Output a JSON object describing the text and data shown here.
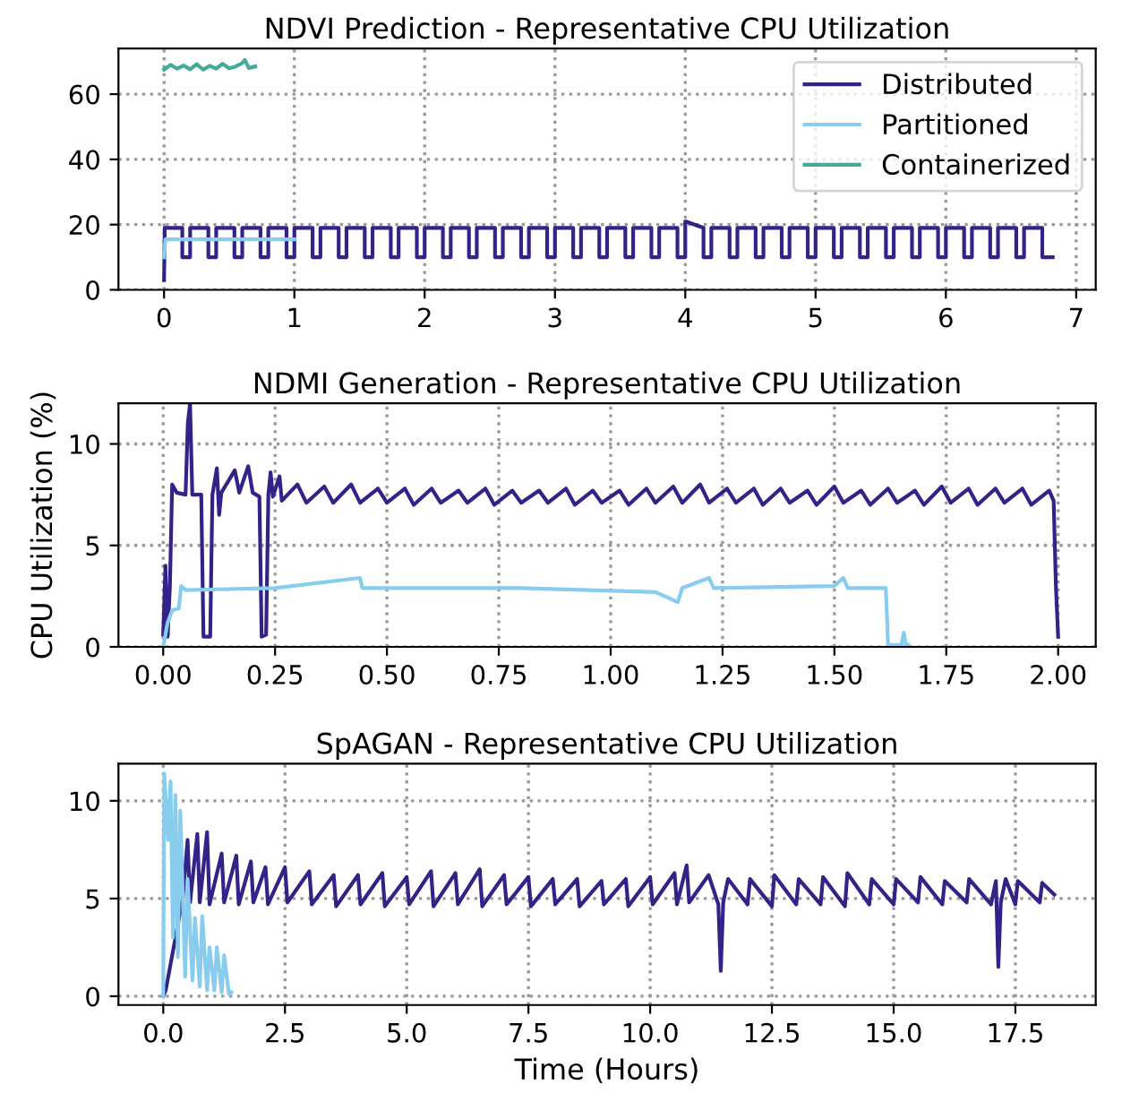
{
  "chart_data": [
    {
      "type": "line",
      "title": "NDVI Prediction - Representative CPU Utilization",
      "xlim": [
        -0.35,
        7.15
      ],
      "ylim": [
        0,
        74
      ],
      "xticks": [
        0,
        1,
        2,
        3,
        4,
        5,
        6,
        7
      ],
      "yticks": [
        0,
        20,
        40,
        60
      ],
      "grid": true,
      "legend": "top right",
      "line_style": "solid",
      "marker": "none",
      "series": [
        {
          "name": "Distributed",
          "color": "#332288",
          "x": [
            0,
            0.005,
            0.14,
            0.14,
            0.2,
            0.2,
            0.34,
            0.34,
            0.4,
            0.4,
            0.54,
            0.54,
            0.6,
            0.6,
            0.74,
            0.74,
            0.8,
            0.8,
            0.94,
            0.94,
            1.0,
            1.0,
            1.14,
            1.14,
            1.2,
            1.2,
            1.34,
            1.34,
            1.4,
            1.4,
            1.54,
            1.54,
            1.6,
            1.6,
            1.74,
            1.74,
            1.8,
            1.8,
            1.94,
            1.94,
            2.0,
            2.0,
            2.14,
            2.14,
            2.2,
            2.2,
            2.34,
            2.34,
            2.4,
            2.4,
            2.54,
            2.54,
            2.6,
            2.6,
            2.74,
            2.74,
            2.8,
            2.8,
            2.94,
            2.94,
            3.0,
            3.0,
            3.14,
            3.14,
            3.2,
            3.2,
            3.34,
            3.34,
            3.4,
            3.4,
            3.54,
            3.54,
            3.6,
            3.6,
            3.74,
            3.74,
            3.8,
            3.8,
            3.94,
            3.94,
            4.0,
            4.0,
            4.14,
            4.14,
            4.2,
            4.2,
            4.34,
            4.34,
            4.4,
            4.4,
            4.54,
            4.54,
            4.6,
            4.6,
            4.74,
            4.74,
            4.8,
            4.8,
            4.94,
            4.94,
            5.0,
            5.0,
            5.14,
            5.14,
            5.2,
            5.2,
            5.34,
            5.34,
            5.4,
            5.4,
            5.54,
            5.54,
            5.6,
            5.6,
            5.74,
            5.74,
            5.8,
            5.8,
            5.94,
            5.94,
            6.0,
            6.0,
            6.14,
            6.14,
            6.2,
            6.2,
            6.34,
            6.34,
            6.4,
            6.4,
            6.54,
            6.54,
            6.6,
            6.6,
            6.74,
            6.74,
            6.82
          ],
          "values": [
            3,
            19,
            19,
            10,
            10,
            19,
            19,
            10,
            10,
            19,
            19,
            10,
            10,
            19,
            19,
            10,
            10,
            19,
            19,
            10,
            10,
            19,
            19,
            10,
            10,
            19,
            19,
            10,
            10,
            19,
            19,
            10,
            10,
            19,
            19,
            10,
            10,
            19,
            19,
            10,
            10,
            19,
            19,
            10,
            10,
            19,
            19,
            10,
            10,
            19,
            19,
            10,
            10,
            19,
            19,
            10,
            10,
            19,
            19,
            10,
            10,
            19,
            19,
            10,
            10,
            19,
            19,
            10,
            10,
            19,
            19,
            10,
            10,
            19,
            19,
            10,
            10,
            19,
            19,
            10,
            10,
            21,
            19,
            10,
            10,
            19,
            19,
            10,
            10,
            19,
            19,
            10,
            10,
            19,
            19,
            10,
            10,
            19,
            19,
            10,
            10,
            19,
            19,
            10,
            10,
            19,
            19,
            10,
            10,
            19,
            19,
            10,
            10,
            19,
            19,
            10,
            10,
            19,
            19,
            10,
            10,
            19,
            19,
            10,
            10,
            19,
            19,
            10,
            10,
            19,
            19,
            10,
            10,
            19,
            19,
            10,
            10
          ]
        },
        {
          "name": "Partitioned",
          "color": "#88ccee",
          "x": [
            0,
            0.01,
            0.5,
            1.0
          ],
          "values": [
            10,
            15.5,
            15.5,
            15.5
          ]
        },
        {
          "name": "Containerized",
          "color": "#44aa99",
          "x": [
            0,
            0.05,
            0.1,
            0.15,
            0.2,
            0.25,
            0.3,
            0.35,
            0.4,
            0.45,
            0.5,
            0.55,
            0.6,
            0.62,
            0.65,
            0.7
          ],
          "values": [
            67.5,
            69,
            67.8,
            68.8,
            67.6,
            69.2,
            67.5,
            68.7,
            67.8,
            69.3,
            67.9,
            68.5,
            69.5,
            70.5,
            68,
            68.5
          ]
        }
      ]
    },
    {
      "type": "line",
      "title": "NDMI Generation - Representative CPU Utilization",
      "ylabel": "CPU Utilization (%)",
      "xlim": [
        -0.1,
        2.084
      ],
      "ylim": [
        0,
        12
      ],
      "xticks": [
        {
          "value": 0,
          "label": "0.00"
        },
        {
          "value": 0.25,
          "label": "0.25"
        },
        {
          "value": 0.5,
          "label": "0.50"
        },
        {
          "value": 0.75,
          "label": "0.75"
        },
        {
          "value": 1.0,
          "label": "1.00"
        },
        {
          "value": 1.25,
          "label": "1.25"
        },
        {
          "value": 1.5,
          "label": "1.50"
        },
        {
          "value": 1.75,
          "label": "1.75"
        },
        {
          "value": 2.0,
          "label": "2.00"
        }
      ],
      "yticks": [
        0,
        5,
        10
      ],
      "grid": true,
      "line_style": "solid",
      "marker": "none",
      "series": [
        {
          "color": "#332288",
          "x": [
            0,
            0.005,
            0.01,
            0.015,
            0.02,
            0.03,
            0.05,
            0.055,
            0.06,
            0.065,
            0.085,
            0.09,
            0.105,
            0.11,
            0.12,
            0.125,
            0.13,
            0.16,
            0.17,
            0.19,
            0.2,
            0.215,
            0.22,
            0.23,
            0.235,
            0.24,
            0.245,
            0.26,
            0.265,
            0.3,
            0.32,
            0.36,
            0.38,
            0.42,
            0.44,
            0.48,
            0.5,
            0.54,
            0.56,
            0.6,
            0.62,
            0.66,
            0.68,
            0.72,
            0.74,
            0.78,
            0.8,
            0.84,
            0.86,
            0.9,
            0.92,
            0.96,
            0.98,
            1.02,
            1.04,
            1.08,
            1.1,
            1.14,
            1.16,
            1.2,
            1.22,
            1.26,
            1.28,
            1.32,
            1.34,
            1.38,
            1.4,
            1.44,
            1.46,
            1.5,
            1.52,
            1.56,
            1.58,
            1.62,
            1.64,
            1.68,
            1.7,
            1.74,
            1.76,
            1.8,
            1.82,
            1.86,
            1.88,
            1.92,
            1.94,
            1.98,
            1.99,
            1.995,
            2.0
          ],
          "values": [
            0.6,
            4,
            0.5,
            3,
            8,
            7.6,
            7.5,
            11,
            12,
            7.5,
            7.5,
            0.5,
            0.5,
            7.5,
            8.8,
            6.5,
            7.6,
            8.7,
            7.6,
            8.9,
            7.6,
            7.4,
            0.5,
            0.6,
            7.5,
            8.6,
            7.4,
            8.4,
            7.2,
            8.0,
            7.1,
            7.9,
            7.1,
            8.0,
            7.1,
            7.8,
            7.1,
            7.8,
            7.0,
            7.8,
            7.1,
            7.7,
            7.1,
            7.8,
            7.0,
            7.7,
            7.1,
            7.7,
            7.1,
            7.8,
            7.0,
            7.7,
            7.1,
            7.7,
            7.0,
            7.8,
            7.1,
            7.9,
            7.1,
            8.0,
            7.1,
            7.8,
            7.1,
            7.8,
            7.0,
            7.8,
            7.1,
            7.7,
            7.0,
            7.9,
            7.1,
            7.7,
            7.0,
            7.8,
            7.1,
            7.7,
            7.0,
            7.9,
            7.1,
            7.8,
            7.0,
            7.8,
            7.1,
            7.8,
            7.0,
            7.7,
            7.2,
            3,
            0.5
          ]
        },
        {
          "color": "#88ccee",
          "x": [
            0,
            0.01,
            0.02,
            0.035,
            0.04,
            0.05,
            0.25,
            0.44,
            0.445,
            0.8,
            1.1,
            1.15,
            1.16,
            1.22,
            1.23,
            1.5,
            1.52,
            1.53,
            1.615,
            1.62,
            1.65,
            1.655,
            1.66,
            1.665
          ],
          "values": [
            0,
            1.2,
            1.8,
            1.9,
            3.0,
            2.8,
            2.9,
            3.4,
            2.9,
            2.9,
            2.7,
            2.2,
            2.9,
            3.4,
            2.9,
            3.0,
            3.4,
            2.9,
            2.9,
            0.1,
            0.1,
            0.7,
            0.1,
            0.1
          ]
        }
      ]
    },
    {
      "type": "line",
      "title": "SpAGAN - Representative CPU Utilization",
      "xlabel": "Time (Hours)",
      "xlim": [
        -0.92,
        19.15
      ],
      "ylim": [
        -0.45,
        11.9
      ],
      "xticks": [
        {
          "value": 0,
          "label": "0.0"
        },
        {
          "value": 2.5,
          "label": "2.5"
        },
        {
          "value": 5,
          "label": "5.0"
        },
        {
          "value": 7.5,
          "label": "7.5"
        },
        {
          "value": 10,
          "label": "10.0"
        },
        {
          "value": 12.5,
          "label": "12.5"
        },
        {
          "value": 15,
          "label": "15.0"
        },
        {
          "value": 17.5,
          "label": "17.5"
        }
      ],
      "yticks": [
        0,
        5,
        10
      ],
      "grid": true,
      "line_style": "solid",
      "marker": "none",
      "series": [
        {
          "color": "#332288",
          "x": [
            0,
            0.05,
            0.4,
            0.5,
            0.55,
            0.7,
            0.75,
            0.9,
            0.95,
            1.2,
            1.25,
            1.5,
            1.55,
            1.8,
            1.85,
            2.1,
            2.15,
            2.5,
            2.55,
            3.0,
            3.05,
            3.5,
            3.55,
            4.0,
            4.05,
            4.5,
            4.55,
            5.0,
            5.05,
            5.5,
            5.55,
            6.0,
            6.05,
            6.5,
            6.55,
            7.0,
            7.05,
            7.5,
            7.55,
            8.0,
            8.05,
            8.5,
            8.55,
            9.0,
            9.05,
            9.5,
            9.55,
            10.0,
            10.05,
            10.5,
            10.55,
            10.75,
            10.8,
            11.2,
            11.4,
            11.45,
            11.5,
            11.6,
            12.0,
            12.05,
            12.5,
            12.55,
            13.0,
            13.05,
            13.5,
            13.55,
            14.0,
            14.05,
            14.5,
            14.55,
            15.0,
            15.05,
            15.5,
            15.55,
            16.0,
            16.05,
            16.5,
            16.55,
            17.0,
            17.1,
            17.15,
            17.2,
            17.3,
            17.5,
            17.55,
            18.0,
            18.05,
            18.3
          ],
          "values": [
            0,
            0.3,
            5.0,
            8.0,
            4.8,
            8.3,
            4.8,
            8.4,
            4.7,
            7.3,
            4.8,
            7.2,
            4.7,
            6.9,
            4.8,
            6.6,
            4.7,
            6.6,
            4.8,
            6.4,
            4.7,
            6.2,
            4.6,
            6.2,
            4.7,
            6.3,
            4.6,
            6.1,
            4.7,
            6.4,
            4.6,
            6.3,
            4.7,
            6.5,
            4.6,
            6.2,
            4.7,
            6.1,
            4.6,
            6.0,
            4.7,
            6.0,
            4.6,
            5.9,
            4.7,
            6.0,
            4.6,
            6.1,
            4.7,
            6.3,
            4.7,
            6.7,
            4.8,
            6.2,
            4.7,
            1.3,
            4.8,
            6.0,
            4.7,
            6.0,
            4.6,
            6.2,
            4.7,
            6.0,
            4.7,
            6.1,
            4.6,
            6.3,
            4.7,
            6.0,
            4.7,
            6.0,
            4.8,
            6.1,
            4.7,
            5.9,
            4.8,
            6.0,
            4.7,
            5.9,
            1.5,
            4.8,
            6.0,
            4.7,
            5.9,
            4.8,
            5.8,
            5.2
          ]
        },
        {
          "color": "#88ccee",
          "x": [
            0,
            0.02,
            0.1,
            0.15,
            0.2,
            0.25,
            0.3,
            0.35,
            0.45,
            0.5,
            0.6,
            0.65,
            0.75,
            0.8,
            0.9,
            0.95,
            1.05,
            1.1,
            1.2,
            1.25,
            1.35,
            1.4
          ],
          "values": [
            0,
            11.4,
            8,
            11,
            3,
            10.3,
            2,
            9.5,
            1,
            6,
            0.8,
            4,
            0.5,
            4.1,
            0.3,
            2.5,
            0.3,
            2.5,
            0.2,
            2.1,
            0.1,
            0.2
          ]
        }
      ]
    }
  ]
}
